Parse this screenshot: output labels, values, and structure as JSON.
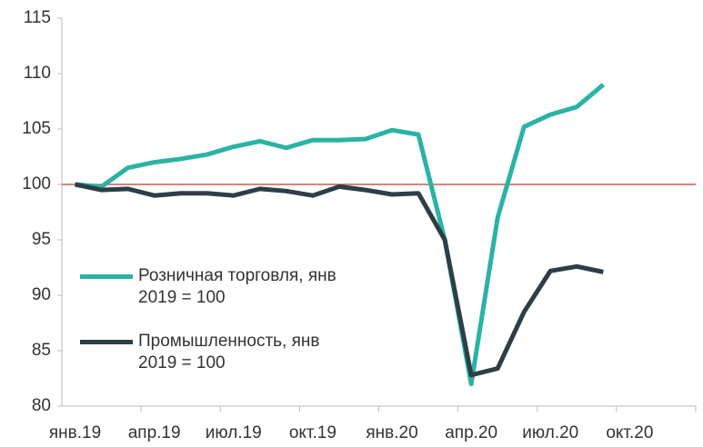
{
  "chart_data": {
    "type": "line",
    "categories": [
      "янв.19",
      null,
      null,
      "апр.19",
      null,
      null,
      "июл.19",
      null,
      null,
      "окт.19",
      null,
      null,
      "янв.20",
      null,
      null,
      "апр.20",
      null,
      null,
      "июл.20",
      null,
      null,
      "окт.20",
      null,
      null
    ],
    "series": [
      {
        "name": "Розничная торговля, янв 2019 = 100",
        "color": "#2ab3a6",
        "values": [
          100,
          99.8,
          101.5,
          102,
          102.3,
          102.7,
          103.4,
          103.9,
          103.3,
          104,
          104,
          104.1,
          104.9,
          104.5,
          95,
          82,
          97,
          105.2,
          106.3,
          107,
          109,
          null,
          null,
          null
        ]
      },
      {
        "name": "Промышленность, янв 2019 = 100",
        "color": "#2d3e48",
        "values": [
          100,
          99.5,
          99.6,
          99,
          99.2,
          99.2,
          99,
          99.6,
          99.4,
          99,
          99.8,
          99.5,
          99.1,
          99.2,
          95,
          82.8,
          83.4,
          88.5,
          92.2,
          92.6,
          92.1,
          null,
          null,
          null
        ]
      }
    ],
    "ylim": [
      80,
      115
    ],
    "yticks": [
      80,
      85,
      90,
      95,
      100,
      105,
      110,
      115
    ],
    "reference_line": 100,
    "reference_color": "#c0392b",
    "legend": "lower-left"
  }
}
